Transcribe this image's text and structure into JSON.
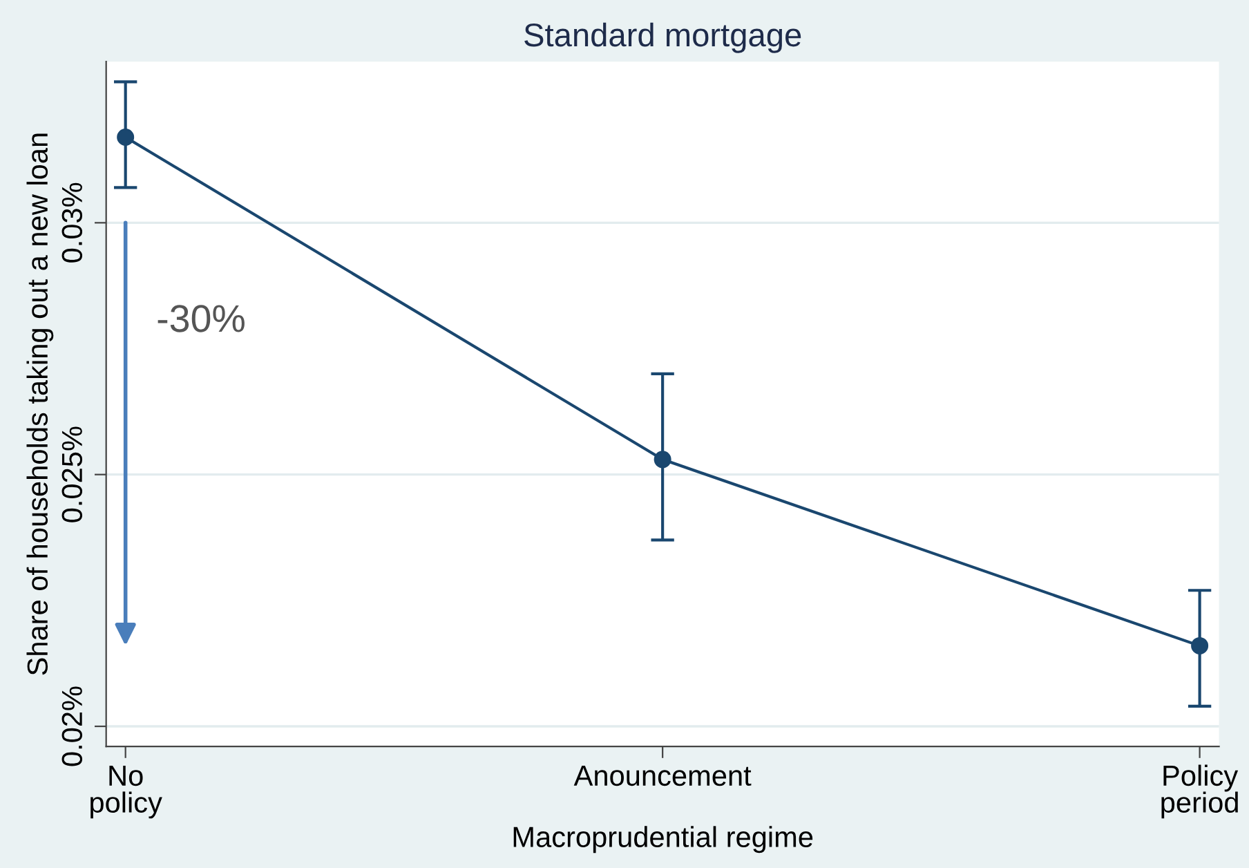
{
  "chart_data": {
    "type": "line",
    "title": "Standard mortgage",
    "xlabel": "Macroprudential regime",
    "ylabel": "Share of households taking out a new loan",
    "categories": [
      "No\npolicy",
      "Anouncement",
      "Policy\nperiod"
    ],
    "series": [
      {
        "color": "#1a476f",
        "values": [
          0.0317,
          0.0253,
          0.0216
        ],
        "errors": [
          [
            0.0307,
            0.0328
          ],
          [
            0.0237,
            0.027
          ],
          [
            0.0204,
            0.0227
          ]
        ]
      }
    ],
    "ylim": [
      0.0196,
      0.0332
    ],
    "yticks": [
      {
        "value": 0.02,
        "label": "0.02%"
      },
      {
        "value": 0.025,
        "label": "0.025%"
      },
      {
        "value": 0.03,
        "label": "0.03%"
      }
    ],
    "grid": "y",
    "marker": "circle",
    "line_style": "solid",
    "annotations": [
      "-30%"
    ]
  }
}
